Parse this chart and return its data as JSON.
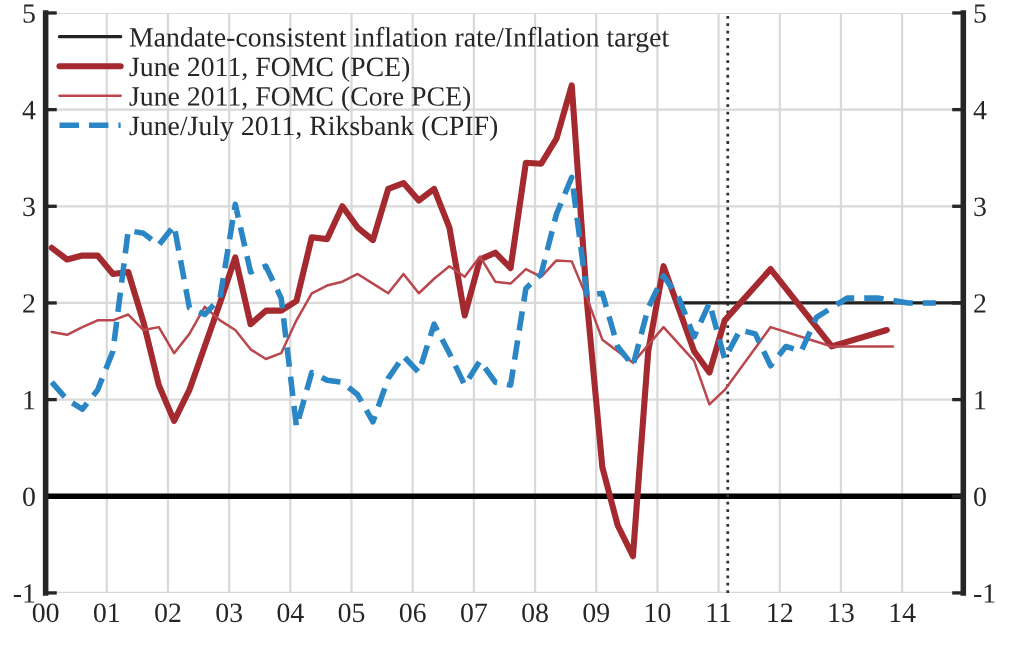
{
  "chart_data": {
    "type": "line",
    "xlim": [
      2000,
      2015
    ],
    "xticks": [
      {
        "value": 2000,
        "label": "00"
      },
      {
        "value": 2001,
        "label": "01"
      },
      {
        "value": 2002,
        "label": "02"
      },
      {
        "value": 2003,
        "label": "03"
      },
      {
        "value": 2004,
        "label": "04"
      },
      {
        "value": 2005,
        "label": "05"
      },
      {
        "value": 2006,
        "label": "06"
      },
      {
        "value": 2007,
        "label": "07"
      },
      {
        "value": 2008,
        "label": "08"
      },
      {
        "value": 2009,
        "label": "09"
      },
      {
        "value": 2010,
        "label": "10"
      },
      {
        "value": 2011,
        "label": "11"
      },
      {
        "value": 2012,
        "label": "12"
      },
      {
        "value": 2013,
        "label": "13"
      },
      {
        "value": 2014,
        "label": "14"
      }
    ],
    "ylim": [
      -1,
      5
    ],
    "yticks": [
      -1,
      0,
      1,
      2,
      3,
      4,
      5
    ],
    "y2lim": [
      -1,
      5
    ],
    "y2ticks": [
      -1,
      0,
      1,
      2,
      3,
      4,
      5
    ],
    "grid": true,
    "legend": "top left",
    "ref_lines": [
      {
        "axis": "y",
        "value": 0,
        "color": "#000000",
        "line_style": "solid"
      },
      {
        "axis": "x",
        "value": 2011.15,
        "color": "#333333",
        "line_style": "dotted"
      }
    ],
    "series": [
      {
        "name": "Mandate-consistent inflation rate/Inflation target",
        "color": "#222222",
        "line_style": "solid",
        "x": [
          2010.35,
          2015
        ],
        "values": [
          2,
          2
        ]
      },
      {
        "name": "June 2011, FOMC (PCE)",
        "color": "#a52a2f",
        "line_style": "solid",
        "x": [
          2000.1,
          2000.35,
          2000.6,
          2000.85,
          2001.1,
          2001.35,
          2001.6,
          2001.85,
          2002.1,
          2002.35,
          2002.6,
          2002.85,
          2003.1,
          2003.35,
          2003.6,
          2003.85,
          2004.1,
          2004.35,
          2004.6,
          2004.85,
          2005.1,
          2005.35,
          2005.6,
          2005.85,
          2006.1,
          2006.35,
          2006.6,
          2006.85,
          2007.1,
          2007.35,
          2007.6,
          2007.85,
          2008.1,
          2008.35,
          2008.6,
          2008.85,
          2009.1,
          2009.35,
          2009.6,
          2009.85,
          2010.1,
          2010.6,
          2010.85,
          2011.1,
          2011.85,
          2012.85,
          2013.75
        ],
        "values": [
          2.57,
          2.45,
          2.49,
          2.49,
          2.3,
          2.32,
          1.8,
          1.15,
          0.78,
          1.1,
          1.55,
          2.0,
          2.47,
          1.78,
          1.92,
          1.92,
          2.02,
          2.68,
          2.66,
          3.0,
          2.78,
          2.65,
          3.18,
          3.24,
          3.06,
          3.18,
          2.78,
          1.87,
          2.45,
          2.52,
          2.36,
          3.45,
          3.44,
          3.7,
          4.25,
          2.0,
          0.3,
          -0.3,
          -0.62,
          1.5,
          2.38,
          1.5,
          1.28,
          1.82,
          2.35,
          1.55,
          1.72
        ]
      },
      {
        "name": "June 2011, FOMC (Core PCE)",
        "color": "#b9474d",
        "line_style": "solid",
        "x": [
          2000.1,
          2000.35,
          2000.6,
          2000.85,
          2001.1,
          2001.35,
          2001.6,
          2001.85,
          2002.1,
          2002.35,
          2002.6,
          2002.85,
          2003.1,
          2003.35,
          2003.6,
          2003.85,
          2004.1,
          2004.35,
          2004.6,
          2004.85,
          2005.1,
          2005.35,
          2005.6,
          2005.85,
          2006.1,
          2006.35,
          2006.6,
          2006.85,
          2007.1,
          2007.35,
          2007.6,
          2007.85,
          2008.1,
          2008.35,
          2008.6,
          2008.85,
          2009.1,
          2009.6,
          2010.1,
          2010.6,
          2010.85,
          2011.1,
          2011.85,
          2012.85,
          2013.85
        ],
        "values": [
          1.7,
          1.67,
          1.75,
          1.82,
          1.82,
          1.88,
          1.72,
          1.75,
          1.48,
          1.68,
          1.96,
          1.82,
          1.72,
          1.52,
          1.42,
          1.48,
          1.82,
          2.1,
          2.18,
          2.22,
          2.3,
          2.2,
          2.1,
          2.3,
          2.1,
          2.25,
          2.38,
          2.27,
          2.48,
          2.22,
          2.2,
          2.35,
          2.27,
          2.44,
          2.43,
          2.05,
          1.62,
          1.38,
          1.75,
          1.4,
          0.95,
          1.1,
          1.75,
          1.55,
          1.55
        ]
      },
      {
        "name": "June/July 2011, Riksbank (CPIF)",
        "color": "#2a86c4",
        "line_style": "dashed",
        "x": [
          2000.1,
          2000.35,
          2000.6,
          2000.85,
          2001.1,
          2001.35,
          2001.6,
          2001.85,
          2002.1,
          2002.35,
          2002.6,
          2002.85,
          2003.1,
          2003.35,
          2003.6,
          2003.85,
          2004.1,
          2004.35,
          2004.6,
          2004.85,
          2005.1,
          2005.35,
          2005.6,
          2005.85,
          2006.1,
          2006.35,
          2006.6,
          2006.85,
          2007.1,
          2007.35,
          2007.6,
          2007.85,
          2008.1,
          2008.35,
          2008.6,
          2008.85,
          2009.1,
          2009.35,
          2009.6,
          2009.85,
          2010.1,
          2010.35,
          2010.6,
          2010.85,
          2011.1,
          2011.35,
          2011.6,
          2011.85,
          2012.1,
          2012.35,
          2012.6,
          2012.85,
          2013.1,
          2013.6,
          2014.1,
          2014.55
        ],
        "values": [
          1.18,
          1.0,
          0.9,
          1.1,
          1.5,
          2.75,
          2.72,
          2.6,
          2.8,
          1.95,
          1.88,
          2.05,
          3.02,
          2.32,
          2.38,
          2.05,
          0.72,
          1.28,
          1.2,
          1.18,
          1.05,
          0.77,
          1.22,
          1.45,
          1.28,
          1.78,
          1.48,
          1.15,
          1.4,
          1.18,
          1.15,
          2.15,
          2.3,
          2.92,
          3.3,
          2.08,
          2.1,
          1.55,
          1.35,
          1.95,
          2.28,
          2.05,
          1.65,
          2.0,
          1.42,
          1.72,
          1.68,
          1.35,
          1.55,
          1.5,
          1.85,
          1.95,
          2.05,
          2.05,
          2.0,
          2.0
        ]
      }
    ]
  }
}
